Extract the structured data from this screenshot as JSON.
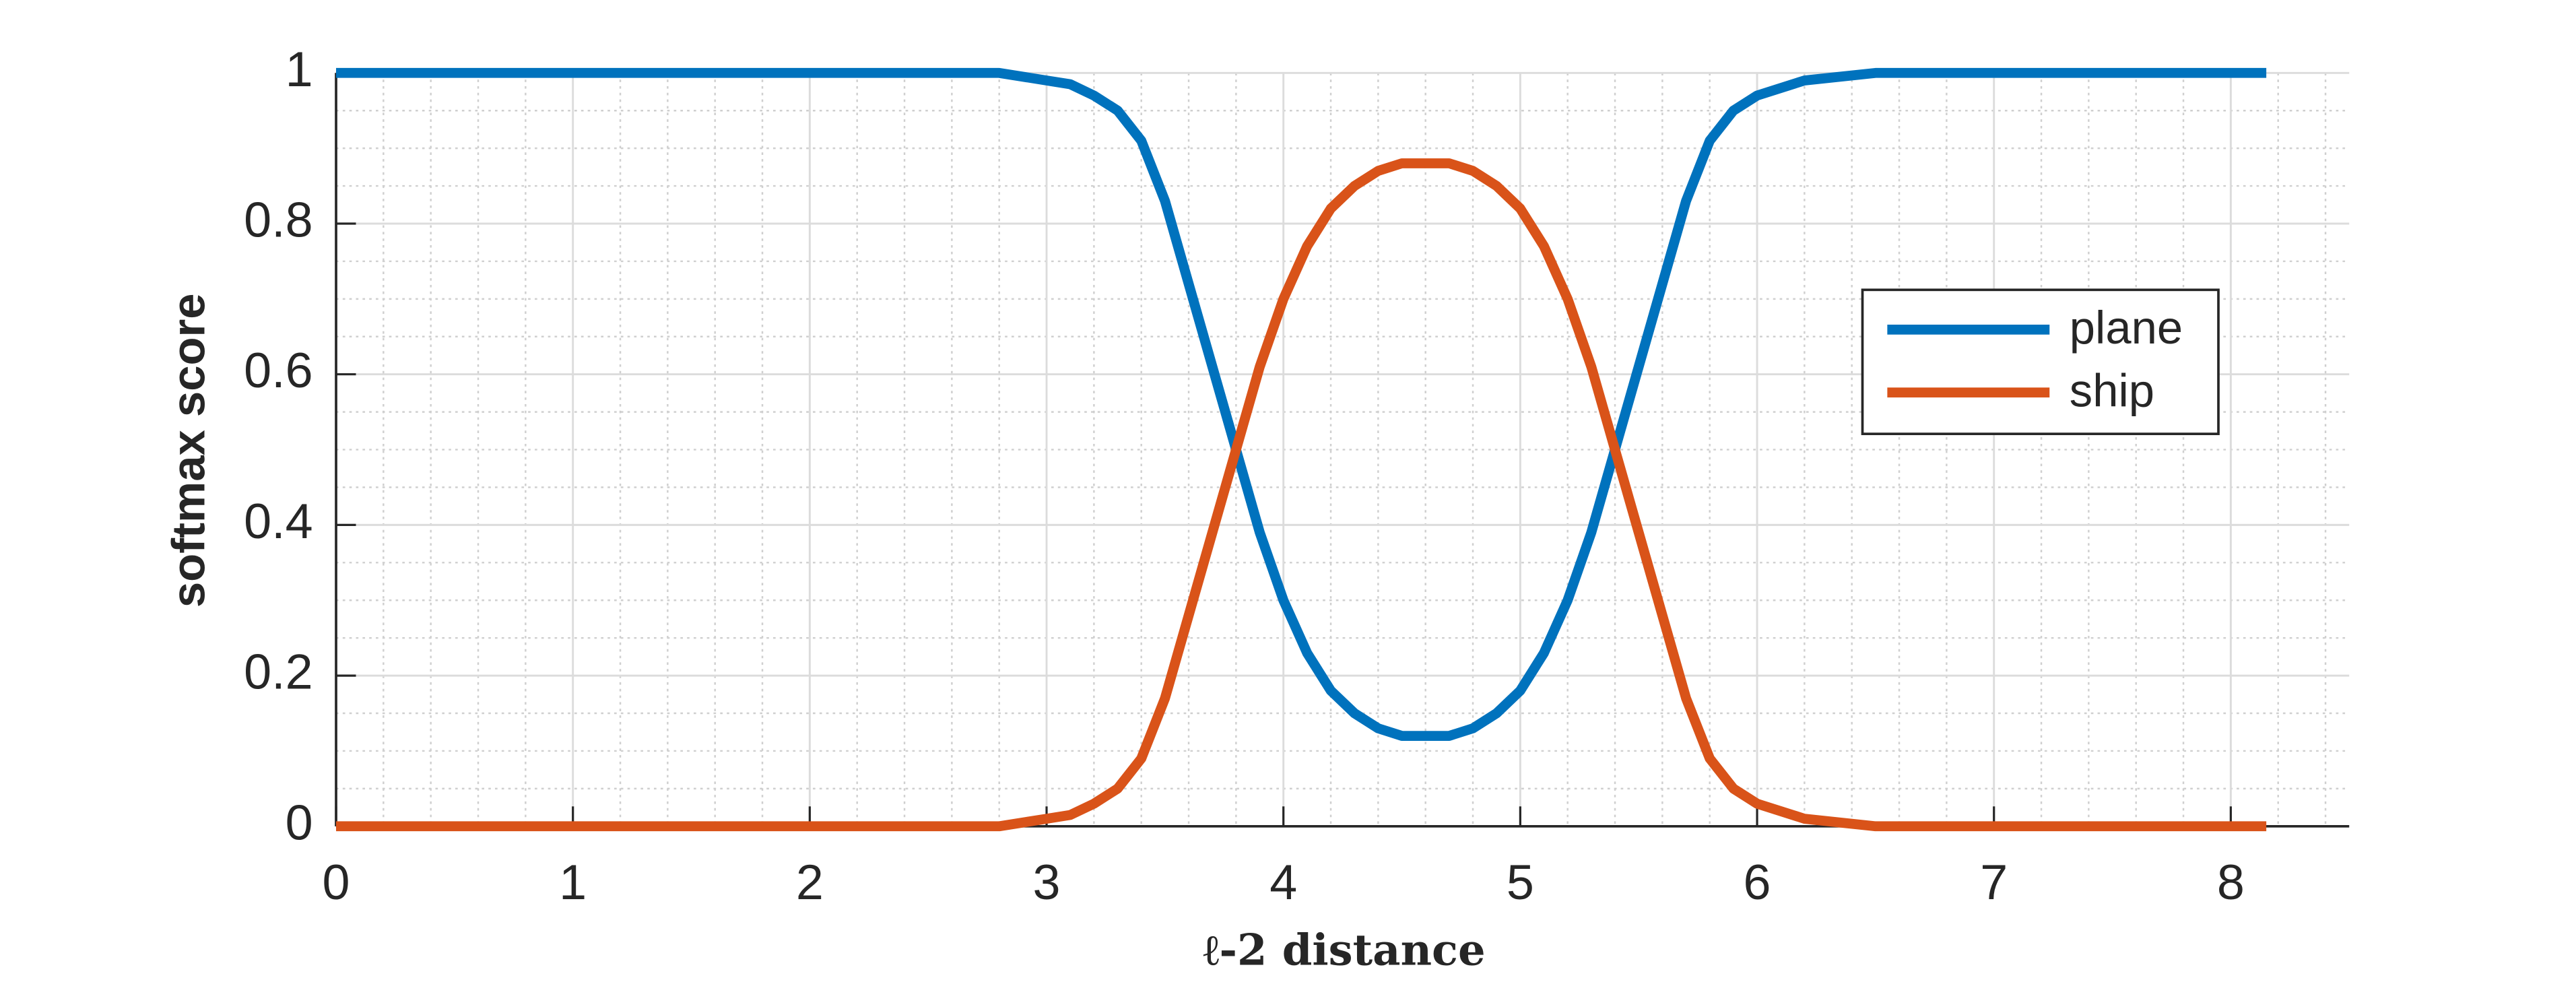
{
  "chart_data": {
    "type": "line",
    "xlabel": "ℓ-2 distance",
    "ylabel": "softmax score",
    "x": [
      0,
      0.5,
      1,
      1.5,
      2,
      2.5,
      2.8,
      3.0,
      3.1,
      3.2,
      3.3,
      3.4,
      3.5,
      3.6,
      3.7,
      3.8,
      3.9,
      4.0,
      4.1,
      4.2,
      4.3,
      4.4,
      4.5,
      4.6,
      4.7,
      4.8,
      4.9,
      5.0,
      5.1,
      5.2,
      5.3,
      5.4,
      5.5,
      5.6,
      5.7,
      5.8,
      5.9,
      6.0,
      6.2,
      6.5,
      7,
      7.5,
      8,
      8.15
    ],
    "series": [
      {
        "name": "plane",
        "color": "#0072bd",
        "values": [
          1,
          1,
          1,
          1,
          1,
          1,
          1,
          0.99,
          0.985,
          0.97,
          0.95,
          0.91,
          0.83,
          0.72,
          0.61,
          0.5,
          0.39,
          0.3,
          0.23,
          0.18,
          0.15,
          0.13,
          0.12,
          0.12,
          0.12,
          0.13,
          0.15,
          0.18,
          0.23,
          0.3,
          0.39,
          0.5,
          0.61,
          0.72,
          0.83,
          0.91,
          0.95,
          0.97,
          0.99,
          1,
          1,
          1,
          1,
          1
        ]
      },
      {
        "name": "ship",
        "color": "#d95319",
        "values": [
          0,
          0,
          0,
          0,
          0,
          0,
          0,
          0.01,
          0.015,
          0.03,
          0.05,
          0.09,
          0.17,
          0.28,
          0.39,
          0.5,
          0.61,
          0.7,
          0.77,
          0.82,
          0.85,
          0.87,
          0.88,
          0.88,
          0.88,
          0.87,
          0.85,
          0.82,
          0.77,
          0.7,
          0.61,
          0.5,
          0.39,
          0.28,
          0.17,
          0.09,
          0.05,
          0.03,
          0.01,
          0,
          0,
          0,
          0,
          0
        ]
      }
    ],
    "xlim": [
      0,
      8.5
    ],
    "xticks": [
      0,
      1,
      2,
      3,
      4,
      5,
      6,
      7,
      8
    ],
    "ylim": [
      0,
      1
    ],
    "yticks": [
      0,
      0.2,
      0.4,
      0.6,
      0.8,
      1
    ],
    "xminorticks": [
      0.2,
      0.4,
      0.6,
      0.8,
      1.2,
      1.4,
      1.6,
      1.8,
      2.2,
      2.4,
      2.6,
      2.8,
      3.2,
      3.4,
      3.6,
      3.8,
      4.2,
      4.4,
      4.6,
      4.8,
      5.2,
      5.4,
      5.6,
      5.8,
      6.2,
      6.4,
      6.6,
      6.8,
      7.2,
      7.4,
      7.6,
      7.8,
      8.2,
      8.4
    ],
    "yminorticks": [
      0.05,
      0.1,
      0.15,
      0.25,
      0.3,
      0.35,
      0.45,
      0.5,
      0.55,
      0.65,
      0.7,
      0.75,
      0.85,
      0.9,
      0.95
    ],
    "grid": true,
    "minor_grid": true,
    "legend": "east"
  }
}
